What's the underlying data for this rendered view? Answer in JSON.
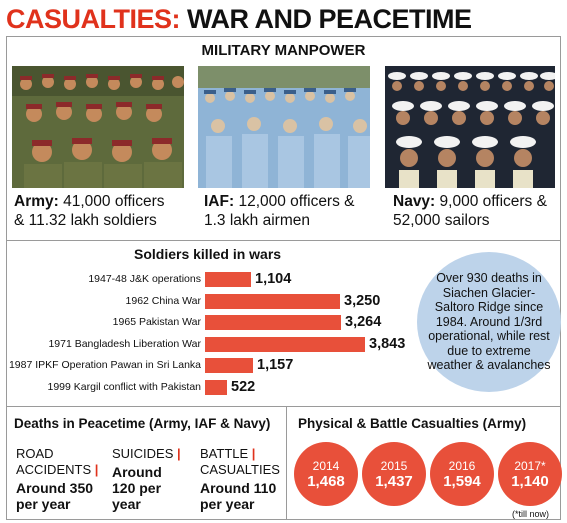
{
  "title": {
    "part1": "CASUALTIES:",
    "part2": "WAR AND PEACETIME"
  },
  "manpower": {
    "title": "MILITARY MANPOWER",
    "units": [
      {
        "name": "Army:",
        "line1": "41,000 officers",
        "line2": "& 11.32 lakh soldiers"
      },
      {
        "name": "IAF:",
        "line1": "12,000 officers &",
        "line2": "1.3 lakh airmen"
      },
      {
        "name": "Navy:",
        "line1": "9,000 officers &",
        "line2": "52,000 sailors"
      }
    ]
  },
  "chart_data": {
    "type": "bar",
    "title": "Soldiers killed in wars",
    "categories": [
      "1947-48 J&K operations",
      "1962 China War",
      "1965 Pakistan War",
      "1971 Bangladesh Liberation War",
      "1987 IPKF Operation Pawan in Sri Lanka",
      "1999 Kargil conflict with Pakistan"
    ],
    "values": [
      1104,
      3250,
      3264,
      3843,
      1157,
      522
    ],
    "value_labels": [
      "1,104",
      "3,250",
      "3,264",
      "3,843",
      "1,157",
      "522"
    ],
    "bar_color": "#e8503a"
  },
  "siachen_note": "Over 930 deaths in Siachen Glacier-Saltoro Ridge since 1984. Around 1/3rd operational, while rest due to extreme weather & avalanches",
  "peacetime": {
    "title": "Deaths in Peacetime (Army, IAF & Navy)",
    "items": [
      {
        "line1": "ROAD",
        "line2": "ACCIDENTS",
        "value1": "Around 350",
        "value2": "per year"
      },
      {
        "line1": "SUICIDES",
        "line2": "",
        "value1": "Around",
        "value2": "120 per year"
      },
      {
        "line1": "BATTLE",
        "line2": "CASUALTIES",
        "value1": "Around 110",
        "value2": "per year"
      }
    ]
  },
  "casualties": {
    "title": "Physical & Battle Casualties (Army)",
    "years": [
      {
        "year": "2014",
        "value": "1,468"
      },
      {
        "year": "2015",
        "value": "1,437"
      },
      {
        "year": "2016",
        "value": "1,594"
      },
      {
        "year": "2017*",
        "value": "1,140"
      }
    ],
    "note": "(*till now)"
  },
  "colors": {
    "accent": "#e0321c",
    "bar": "#e8503a",
    "bubble": "#bdd3ea"
  }
}
